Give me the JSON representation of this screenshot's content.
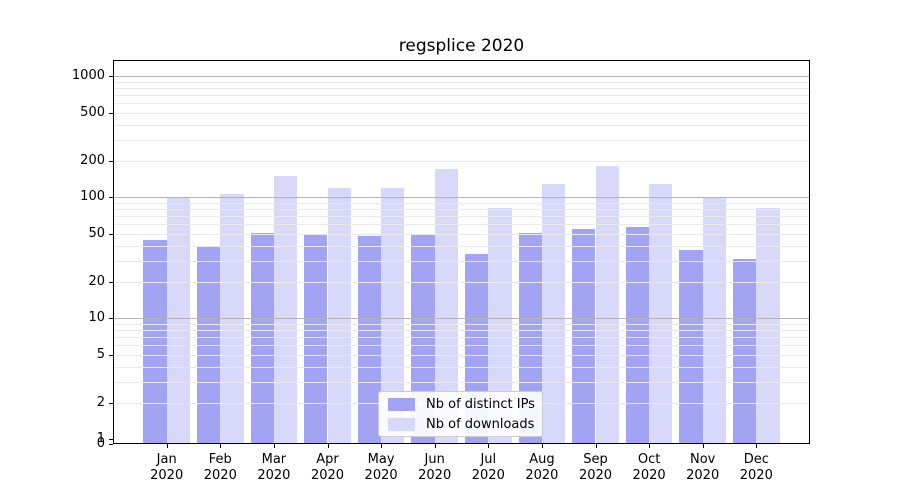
{
  "chart_data": {
    "type": "bar",
    "title": "regsplice 2020",
    "categories": [
      "Jan 2020",
      "Feb 2020",
      "Mar 2020",
      "Apr 2020",
      "May 2020",
      "Jun 2020",
      "Jul 2020",
      "Aug 2020",
      "Sep 2020",
      "Oct 2020",
      "Nov 2020",
      "Dec 2020"
    ],
    "months": [
      "Jan",
      "Feb",
      "Mar",
      "Apr",
      "May",
      "Jun",
      "Jul",
      "Aug",
      "Sep",
      "Oct",
      "Nov",
      "Dec"
    ],
    "year": "2020",
    "series": [
      {
        "name": "Nb of distinct IPs",
        "color": "#a3a3f3",
        "values": [
          44,
          39,
          51,
          50,
          48,
          49,
          34,
          51,
          55,
          57,
          37,
          31
        ]
      },
      {
        "name": "Nb of downloads",
        "color": "#d8d8fa",
        "values": [
          100,
          106,
          150,
          120,
          119,
          171,
          81,
          130,
          183,
          130,
          100,
          81
        ]
      }
    ],
    "xlabel": "",
    "ylabel": "",
    "yscale": "symlog",
    "yticks": [
      0,
      1,
      2,
      5,
      10,
      20,
      50,
      100,
      200,
      500,
      1000
    ],
    "ylim": [
      0,
      1365
    ],
    "grid": {
      "on": true,
      "major_color": "#b3b3b3",
      "minor_color": "#e9e9e9"
    },
    "legend": {
      "position": "lower center"
    },
    "spine_color": "#000000"
  }
}
